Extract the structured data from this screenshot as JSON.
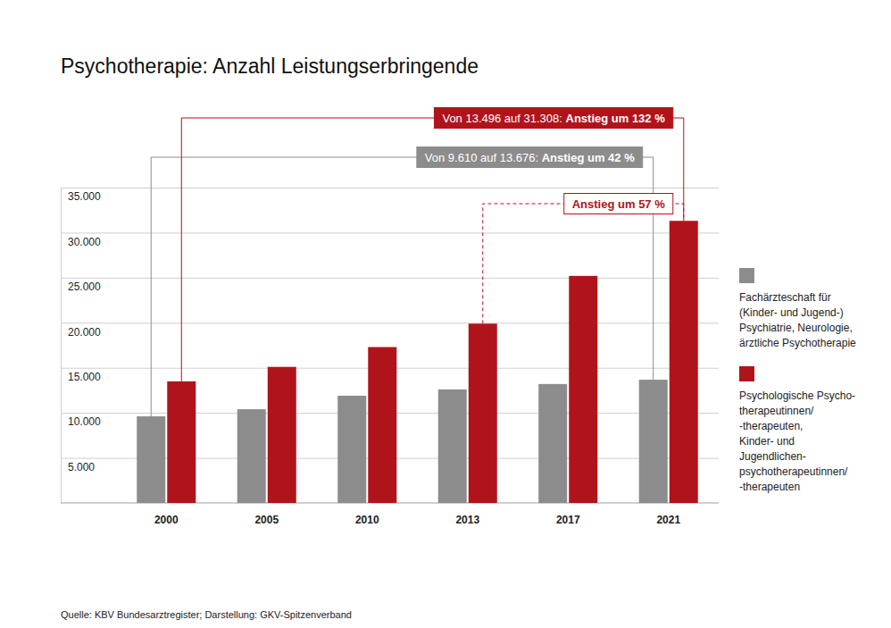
{
  "chart_data": {
    "type": "bar",
    "title": "Psychotherapie: Anzahl Leistungserbringende",
    "categories": [
      "2000",
      "2005",
      "2010",
      "2013",
      "2017",
      "2021"
    ],
    "series": [
      {
        "name": "Fachärzteschaft für\n(Kinder- und Jugend-)\nPsychiatrie, Neurologie,\närztliche Psychotherapie",
        "color": "#8c8c8c",
        "values": [
          9610,
          10400,
          11900,
          12600,
          13200,
          13676
        ],
        "annotations": [
          {
            "text": "Von 9.610 auf 13.676: ",
            "bold": "Anstieg um 42 %",
            "from": "2000",
            "to": "2021",
            "color": "#8c8c8c"
          }
        ]
      },
      {
        "name": "Psychologische Psycho-\ntherapeutinnen/\n-therapeuten,\nKinder- und\nJugendlichen-\npsychotherapeutinnen/\n-therapeuten",
        "color": "#b0141a",
        "values": [
          13496,
          15100,
          17300,
          19900,
          25200,
          31308
        ],
        "annotations": [
          {
            "text": "Von 13.496 auf 31.308: ",
            "bold": "Anstieg um 132 %",
            "from": "2000",
            "to": "2021",
            "color": "#b0141a"
          },
          {
            "bold": "Anstieg um 57 %",
            "from": "2013",
            "to": "2021",
            "color": "#b0141a",
            "line_style": "dashed"
          }
        ]
      }
    ],
    "ylim": [
      0,
      35000
    ],
    "yticks": [
      {
        "value": 5000,
        "label": "5.000"
      },
      {
        "value": 10000,
        "label": "10.000"
      },
      {
        "value": 15000,
        "label": "15.000"
      },
      {
        "value": 20000,
        "label": "20.000"
      },
      {
        "value": 25000,
        "label": "25.000"
      },
      {
        "value": 30000,
        "label": "30.000"
      },
      {
        "value": 35000,
        "label": "35.000"
      }
    ],
    "grid": true,
    "legend": "right",
    "source": "Quelle: KBV Bundesarztregister; Darstellung: GKV-Spitzenverband"
  }
}
